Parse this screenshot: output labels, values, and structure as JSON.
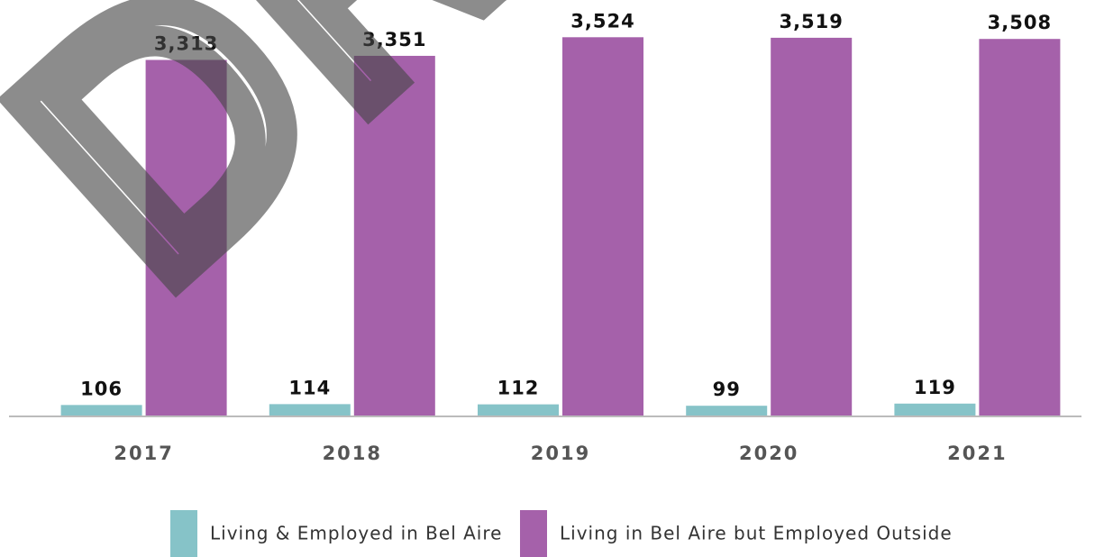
{
  "chart_data": {
    "type": "bar",
    "annotation": "DRAFT",
    "categories": [
      "2017",
      "2018",
      "2019",
      "2020",
      "2021"
    ],
    "series": [
      {
        "name": "Living & Employed in Bel Aire",
        "color": "#86c3c8",
        "values": [
          106,
          114,
          112,
          99,
          119
        ],
        "value_labels": [
          "106",
          "114",
          "112",
          "99",
          "119"
        ]
      },
      {
        "name": "Living in Bel Aire but Employed Outside",
        "color": "#a561aa",
        "values": [
          3313,
          3351,
          3524,
          3519,
          3508
        ],
        "value_labels": [
          "3,313",
          "3,351",
          "3,524",
          "3,519",
          "3,508"
        ]
      }
    ],
    "ylim": [
      0,
      3870
    ]
  }
}
